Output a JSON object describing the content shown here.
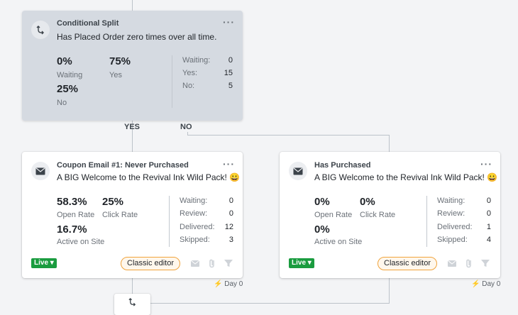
{
  "split": {
    "title": "Conditional Split",
    "description": "Has Placed Order zero times over all time.",
    "stats": [
      {
        "value": "0%",
        "label": "Waiting"
      },
      {
        "value": "75%",
        "label": "Yes"
      },
      {
        "value": "25%",
        "label": "No"
      }
    ],
    "counts": [
      {
        "label": "Waiting:",
        "value": "0"
      },
      {
        "label": "Yes:",
        "value": "15"
      },
      {
        "label": "No:",
        "value": "5"
      }
    ]
  },
  "branches": {
    "yes": "YES",
    "no": "NO"
  },
  "emails": [
    {
      "title": "Coupon Email #1: Never Purchased",
      "subject": "A BIG Welcome to the Revival Ink Wild Pack! 😀",
      "open_rate": "58.3%",
      "open_label": "Open Rate",
      "click_rate": "25%",
      "click_label": "Click Rate",
      "site_rate": "16.7%",
      "site_label": "Active on Site",
      "counts": [
        {
          "label": "Waiting:",
          "value": "0"
        },
        {
          "label": "Review:",
          "value": "0"
        },
        {
          "label": "Delivered:",
          "value": "12"
        },
        {
          "label": "Skipped:",
          "value": "3"
        }
      ],
      "status": "Live ▾",
      "editor": "Classic editor",
      "delay": "Day 0"
    },
    {
      "title": "Has Purchased",
      "subject": "A BIG Welcome to the Revival Ink Wild Pack! 😀",
      "open_rate": "0%",
      "open_label": "Open Rate",
      "click_rate": "0%",
      "click_label": "Click Rate",
      "site_rate": "0%",
      "site_label": "Active on Site",
      "counts": [
        {
          "label": "Waiting:",
          "value": "0"
        },
        {
          "label": "Review:",
          "value": "0"
        },
        {
          "label": "Delivered:",
          "value": "1"
        },
        {
          "label": "Skipped:",
          "value": "4"
        }
      ],
      "status": "Live ▾",
      "editor": "Classic editor",
      "delay": "Day 0"
    }
  ],
  "colors": {
    "live": "#1a9c3f",
    "editor_border": "#f0a33b",
    "split_bg": "#d5dae1"
  }
}
